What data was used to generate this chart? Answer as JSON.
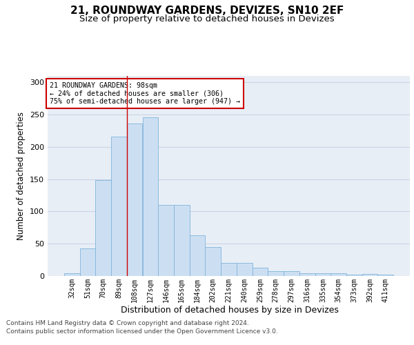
{
  "title1": "21, ROUNDWAY GARDENS, DEVIZES, SN10 2EF",
  "title2": "Size of property relative to detached houses in Devizes",
  "xlabel": "Distribution of detached houses by size in Devizes",
  "ylabel": "Number of detached properties",
  "categories": [
    "32sqm",
    "51sqm",
    "70sqm",
    "89sqm",
    "108sqm",
    "127sqm",
    "146sqm",
    "165sqm",
    "184sqm",
    "202sqm",
    "221sqm",
    "240sqm",
    "259sqm",
    "278sqm",
    "297sqm",
    "316sqm",
    "335sqm",
    "354sqm",
    "373sqm",
    "392sqm",
    "411sqm"
  ],
  "values": [
    4,
    43,
    149,
    216,
    236,
    246,
    110,
    110,
    63,
    45,
    20,
    20,
    13,
    8,
    7,
    4,
    4,
    4,
    2,
    3,
    2
  ],
  "bar_color": "#ccdff2",
  "bar_edge_color": "#7fb3db",
  "grid_color": "#c8d4e4",
  "background_color": "#e8eef6",
  "annotation_text": "21 ROUNDWAY GARDENS: 98sqm\n← 24% of detached houses are smaller (306)\n75% of semi-detached houses are larger (947) →",
  "annotation_box_color": "#ffffff",
  "annotation_box_edge": "#cc0000",
  "property_line_x": 3.5,
  "property_line_color": "#cc0000",
  "ylim": [
    0,
    310
  ],
  "yticks": [
    0,
    50,
    100,
    150,
    200,
    250,
    300
  ],
  "footer_line1": "Contains HM Land Registry data © Crown copyright and database right 2024.",
  "footer_line2": "Contains public sector information licensed under the Open Government Licence v3.0.",
  "title_fontsize": 11,
  "subtitle_fontsize": 9.5,
  "tick_fontsize": 7,
  "ylabel_fontsize": 8.5,
  "xlabel_fontsize": 9,
  "footer_fontsize": 6.5
}
